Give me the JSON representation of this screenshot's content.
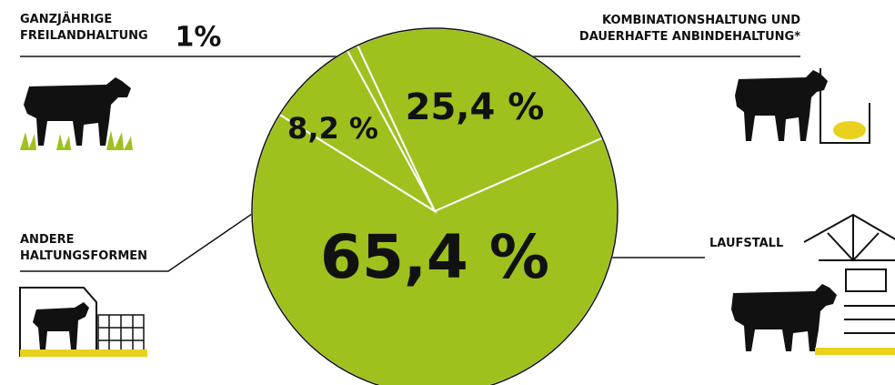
{
  "chart_data": {
    "type": "pie",
    "categories": [
      "GANZJÄHRIGE FREILANDHALTUNG",
      "KOMBINATIONSHALTUNG UND DAUERHAFTE ANBINDEHALTUNG*",
      "LAUFSTALL",
      "ANDERE HALTUNGSFORMEN"
    ],
    "values": [
      1,
      25.4,
      65.4,
      8.2
    ],
    "value_labels": [
      "1%",
      "25,4 %",
      "65,4 %",
      "8,2 %"
    ],
    "color": "#9ec11d"
  }
}
